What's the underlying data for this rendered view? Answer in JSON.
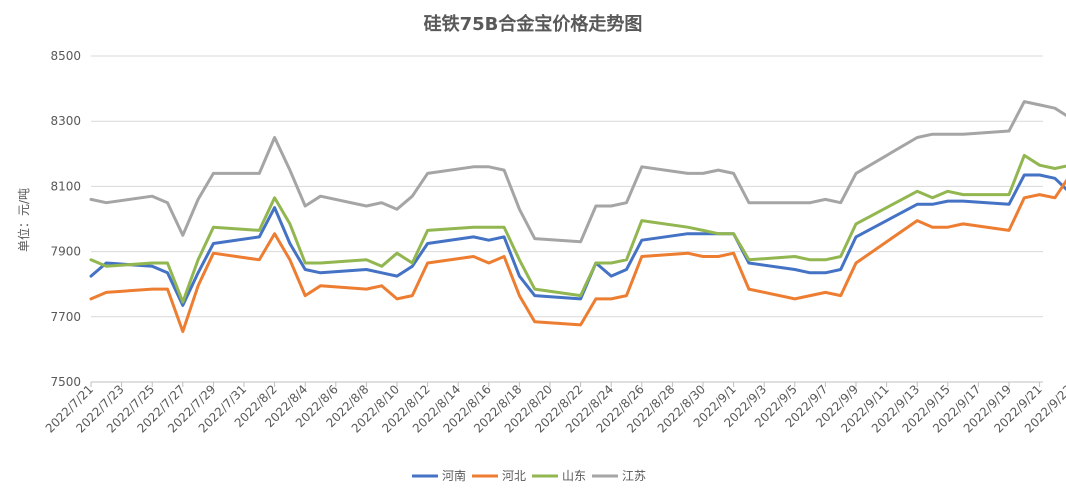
{
  "chart_data": {
    "type": "line",
    "title": "硅铁75B合金宝价格走势图",
    "ylabel": "单位：元/吨",
    "xlabel": "",
    "ylim": [
      7500,
      8500
    ],
    "yticks": [
      7500,
      7700,
      7900,
      8100,
      8300,
      8500
    ],
    "grid": true,
    "legend_position": "bottom",
    "x_start": "2022/7/21",
    "x_ticks": [
      "2022/7/21",
      "2022/7/23",
      "2022/7/25",
      "2022/7/27",
      "2022/7/29",
      "2022/7/31",
      "2022/8/2",
      "2022/8/4",
      "2022/8/6",
      "2022/8/8",
      "2022/8/10",
      "2022/8/12",
      "2022/8/14",
      "2022/8/16",
      "2022/8/18",
      "2022/8/20",
      "2022/8/22",
      "2022/8/24",
      "2022/8/26",
      "2022/8/28",
      "2022/8/30",
      "2022/9/1",
      "2022/9/3",
      "2022/9/5",
      "2022/9/7",
      "2022/9/9",
      "2022/9/11",
      "2022/9/13",
      "2022/9/15",
      "2022/9/17",
      "2022/9/19",
      "2022/9/21",
      "2022/9/23"
    ],
    "series": [
      {
        "name": "河南",
        "color": "#4472C4",
        "x": [
          "2022/7/21",
          "2022/7/22",
          "2022/7/25",
          "2022/7/26",
          "2022/7/27",
          "2022/7/28",
          "2022/7/29",
          "2022/8/1",
          "2022/8/2",
          "2022/8/3",
          "2022/8/4",
          "2022/8/5",
          "2022/8/8",
          "2022/8/9",
          "2022/8/10",
          "2022/8/11",
          "2022/8/12",
          "2022/8/15",
          "2022/8/16",
          "2022/8/17",
          "2022/8/18",
          "2022/8/19",
          "2022/8/22",
          "2022/8/23",
          "2022/8/24",
          "2022/8/25",
          "2022/8/26",
          "2022/8/29",
          "2022/8/30",
          "2022/8/31",
          "2022/9/1",
          "2022/9/2",
          "2022/9/5",
          "2022/9/6",
          "2022/9/7",
          "2022/9/8",
          "2022/9/9",
          "2022/9/13",
          "2022/9/14",
          "2022/9/15",
          "2022/9/16",
          "2022/9/19",
          "2022/9/20",
          "2022/9/21",
          "2022/9/22",
          "2022/9/23"
        ],
        "values": [
          7825,
          7865,
          7855,
          7835,
          7735,
          7835,
          7925,
          7945,
          8035,
          7925,
          7845,
          7835,
          7845,
          7835,
          7825,
          7855,
          7925,
          7945,
          7935,
          7945,
          7825,
          7765,
          7755,
          7865,
          7825,
          7845,
          7935,
          7955,
          7955,
          7955,
          7955,
          7865,
          7845,
          7835,
          7835,
          7845,
          7945,
          8045,
          8045,
          8055,
          8055,
          8045,
          8135,
          8135,
          8125,
          8080
        ]
      },
      {
        "name": "河北",
        "color": "#ED7D31",
        "x": [
          "2022/7/21",
          "2022/7/22",
          "2022/7/25",
          "2022/7/26",
          "2022/7/27",
          "2022/7/28",
          "2022/7/29",
          "2022/8/1",
          "2022/8/2",
          "2022/8/3",
          "2022/8/4",
          "2022/8/5",
          "2022/8/8",
          "2022/8/9",
          "2022/8/10",
          "2022/8/11",
          "2022/8/12",
          "2022/8/15",
          "2022/8/16",
          "2022/8/17",
          "2022/8/18",
          "2022/8/19",
          "2022/8/22",
          "2022/8/23",
          "2022/8/24",
          "2022/8/25",
          "2022/8/26",
          "2022/8/29",
          "2022/8/30",
          "2022/8/31",
          "2022/9/1",
          "2022/9/2",
          "2022/9/5",
          "2022/9/6",
          "2022/9/7",
          "2022/9/8",
          "2022/9/9",
          "2022/9/13",
          "2022/9/14",
          "2022/9/15",
          "2022/9/16",
          "2022/9/19",
          "2022/9/20",
          "2022/9/21",
          "2022/9/22",
          "2022/9/23"
        ],
        "values": [
          7755,
          7775,
          7785,
          7785,
          7655,
          7795,
          7895,
          7875,
          7955,
          7875,
          7765,
          7795,
          7785,
          7795,
          7755,
          7765,
          7865,
          7885,
          7865,
          7885,
          7765,
          7685,
          7675,
          7755,
          7755,
          7765,
          7885,
          7895,
          7885,
          7885,
          7895,
          7785,
          7755,
          7765,
          7775,
          7765,
          7865,
          7995,
          7975,
          7975,
          7985,
          7965,
          8065,
          8075,
          8065,
          8135
        ]
      },
      {
        "name": "山东",
        "color": "#92B650",
        "x": [
          "2022/7/21",
          "2022/7/22",
          "2022/7/25",
          "2022/7/26",
          "2022/7/27",
          "2022/7/28",
          "2022/7/29",
          "2022/8/1",
          "2022/8/2",
          "2022/8/3",
          "2022/8/4",
          "2022/8/5",
          "2022/8/8",
          "2022/8/9",
          "2022/8/10",
          "2022/8/11",
          "2022/8/12",
          "2022/8/15",
          "2022/8/16",
          "2022/8/17",
          "2022/8/18",
          "2022/8/19",
          "2022/8/22",
          "2022/8/23",
          "2022/8/24",
          "2022/8/25",
          "2022/8/26",
          "2022/8/29",
          "2022/8/30",
          "2022/8/31",
          "2022/9/1",
          "2022/9/2",
          "2022/9/5",
          "2022/9/6",
          "2022/9/7",
          "2022/9/8",
          "2022/9/9",
          "2022/9/13",
          "2022/9/14",
          "2022/9/15",
          "2022/9/16",
          "2022/9/19",
          "2022/9/20",
          "2022/9/21",
          "2022/9/22",
          "2022/9/23"
        ],
        "values": [
          7875,
          7855,
          7865,
          7865,
          7745,
          7875,
          7975,
          7965,
          8065,
          7985,
          7865,
          7865,
          7875,
          7855,
          7895,
          7865,
          7965,
          7975,
          7975,
          7975,
          7875,
          7785,
          7765,
          7865,
          7865,
          7875,
          7995,
          7975,
          7965,
          7955,
          7955,
          7875,
          7885,
          7875,
          7875,
          7885,
          7985,
          8085,
          8065,
          8085,
          8075,
          8075,
          8195,
          8165,
          8155,
          8165
        ]
      },
      {
        "name": "江苏",
        "color": "#A5A5A5",
        "x": [
          "2022/7/21",
          "2022/7/22",
          "2022/7/25",
          "2022/7/26",
          "2022/7/27",
          "2022/7/28",
          "2022/7/29",
          "2022/8/1",
          "2022/8/2",
          "2022/8/3",
          "2022/8/4",
          "2022/8/5",
          "2022/8/8",
          "2022/8/9",
          "2022/8/10",
          "2022/8/11",
          "2022/8/12",
          "2022/8/15",
          "2022/8/16",
          "2022/8/17",
          "2022/8/18",
          "2022/8/19",
          "2022/8/22",
          "2022/8/23",
          "2022/8/24",
          "2022/8/25",
          "2022/8/26",
          "2022/8/29",
          "2022/8/30",
          "2022/8/31",
          "2022/9/1",
          "2022/9/2",
          "2022/9/5",
          "2022/9/6",
          "2022/9/7",
          "2022/9/8",
          "2022/9/9",
          "2022/9/13",
          "2022/9/14",
          "2022/9/15",
          "2022/9/16",
          "2022/9/19",
          "2022/9/20",
          "2022/9/21",
          "2022/9/22",
          "2022/9/23"
        ],
        "values": [
          8060,
          8050,
          8070,
          8050,
          7950,
          8060,
          8140,
          8140,
          8250,
          8150,
          8040,
          8070,
          8040,
          8050,
          8030,
          8070,
          8140,
          8160,
          8160,
          8150,
          8030,
          7940,
          7930,
          8040,
          8040,
          8050,
          8160,
          8140,
          8140,
          8150,
          8140,
          8050,
          8050,
          8050,
          8060,
          8050,
          8140,
          8250,
          8260,
          8260,
          8260,
          8270,
          8360,
          8350,
          8340,
          8310
        ]
      }
    ]
  }
}
